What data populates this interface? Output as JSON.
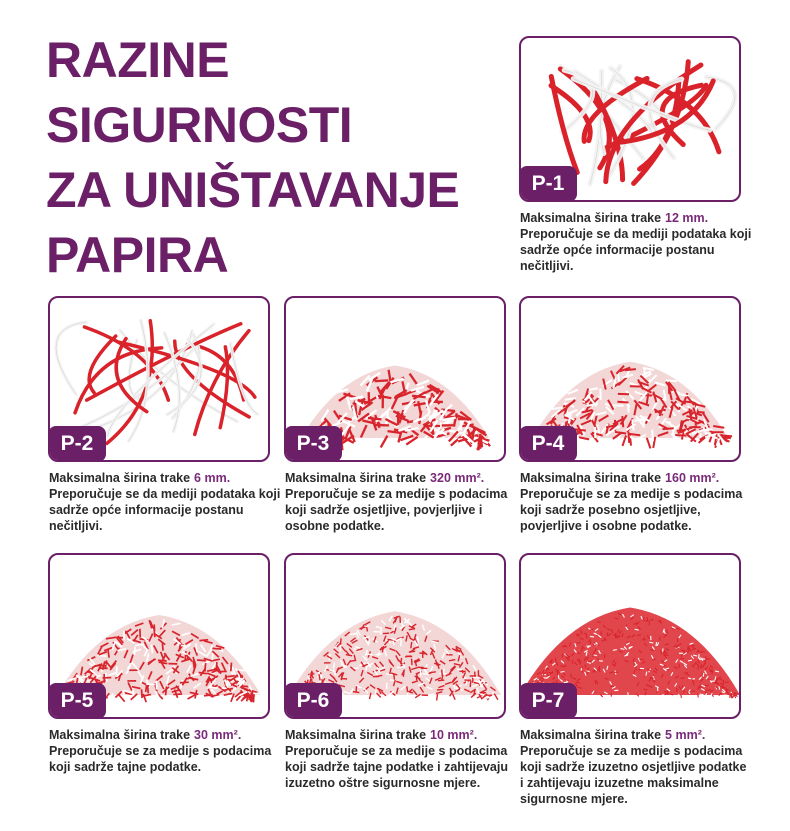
{
  "title_lines": [
    "RAZINE",
    "SIGURNOSTI",
    "ZA UNIŠTAVANJE",
    "PAPIRA"
  ],
  "cards": [
    {
      "label": "P-1",
      "prefix": "Maksimalna širina trake",
      "highlight": "12 mm.",
      "text": "Preporučuje se da mediji podataka koji sadrže opće informacije postanu nečitljivi."
    },
    {
      "label": "P-2",
      "prefix": "Maksimalna širina trake",
      "highlight": "6 mm.",
      "text": "Preporučuje se da mediji podataka koji sadrže opće informacije postanu nečitljivi."
    },
    {
      "label": "P-3",
      "prefix": "Maksimalna širina trake",
      "highlight": "320 mm².",
      "text": "Preporučuje se za medije s podacima koji sadrže osjetljive, povjerljive i osobne podatke."
    },
    {
      "label": "P-4",
      "prefix": "Maksimalna širina trake",
      "highlight": "160 mm².",
      "text": "Preporučuje se za medije s podacima koji sadrže posebno osjetljive, povjerljive i osobne podatke."
    },
    {
      "label": "P-5",
      "prefix": "Maksimalna širina trake",
      "highlight": "30 mm².",
      "text": "Preporučuje se za medije s podacima koji sadrže tajne podatke."
    },
    {
      "label": "P-6",
      "prefix": "Maksimalna širina trake",
      "highlight": "10 mm².",
      "text": "Preporučuje se za medije s podacima koji sadrže tajne podatke i zahtijevaju izuzetno oštre sigurnosne mjere."
    },
    {
      "label": "P-7",
      "prefix": "Maksimalna širina trake",
      "highlight": "5 mm².",
      "text": "Preporučuje se za medije s podacima koji sadrže izuzetno osjetljive podatke i zahtijevaju izuzetne maksimalne sigurnosne mjere."
    }
  ]
}
